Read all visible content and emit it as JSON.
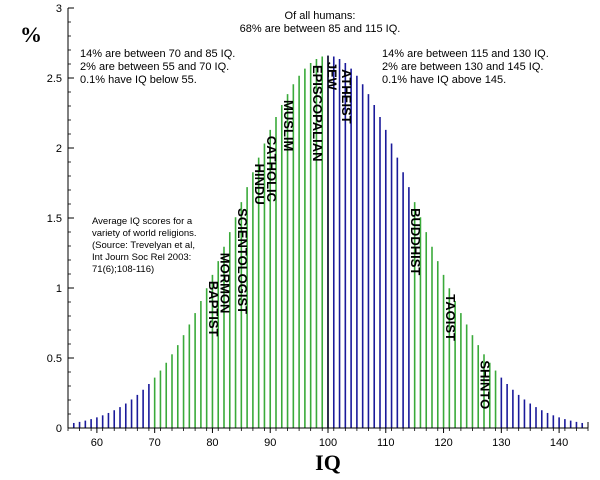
{
  "chart_data": {
    "type": "bar",
    "mean": 100,
    "sd": 15,
    "bar_step": 1,
    "xlim": [
      55,
      145
    ],
    "ylim": [
      0,
      3
    ],
    "x_ticks": [
      60,
      70,
      80,
      90,
      100,
      110,
      120,
      130,
      140
    ],
    "y_ticks": [
      {
        "v": 0,
        "label": "0"
      },
      {
        "v": 0.5,
        "label": "0.5"
      },
      {
        "v": 1,
        "label": "1"
      },
      {
        "v": 1.5,
        "label": "1.5"
      },
      {
        "v": 2,
        "label": "2"
      },
      {
        "v": 2.5,
        "label": "2.5"
      },
      {
        "v": 3,
        "label": "3"
      }
    ],
    "ylabel": "%",
    "xlabel": "IQ",
    "colors": {
      "green": "#3aaa3a",
      "blue": "#1a1a9a",
      "mean_line": "#000000"
    },
    "color_bands": [
      {
        "from": 55,
        "to": 70,
        "color": "blue"
      },
      {
        "from": 70,
        "to": 85,
        "color": "green"
      },
      {
        "from": 85,
        "to": 100,
        "color": "green"
      },
      {
        "from": 100,
        "to": 115,
        "color": "blue"
      },
      {
        "from": 115,
        "to": 130,
        "color": "green"
      },
      {
        "from": 130,
        "to": 145,
        "color": "blue"
      }
    ],
    "annotations": {
      "top_center": [
        "Of all humans:",
        "68% are between 85 and 115 IQ."
      ],
      "top_left": [
        "14% are between 70 and 85 IQ.",
        "2% are between 55 and 70 IQ.",
        "0.1% have IQ below 55."
      ],
      "top_right": [
        "14% are between 115 and 130 IQ.",
        "2% are between 130 and 145 IQ.",
        "0.1% have IQ above 145."
      ],
      "source": [
        "Average IQ scores for a",
        "variety of world religions.",
        "(Source: Trevelyan et al,",
        "Int Journ Soc Rel 2003:",
        "71(6);108-116)"
      ]
    },
    "religions": [
      {
        "label": "BAPTIST",
        "iq": 80
      },
      {
        "label": "MORMON",
        "iq": 82
      },
      {
        "label": "SCIENTOLOGIST",
        "iq": 85
      },
      {
        "label": "HINDU",
        "iq": 88
      },
      {
        "label": "CATHOLIC",
        "iq": 90
      },
      {
        "label": "MUSLIM",
        "iq": 93
      },
      {
        "label": "EPISCOPALIAN",
        "iq": 98
      },
      {
        "label": "JEW",
        "iq": 100.5
      },
      {
        "label": "ATHEIST",
        "iq": 103
      },
      {
        "label": "BUDDHIST",
        "iq": 115
      },
      {
        "label": "TAOIST",
        "iq": 121
      },
      {
        "label": "SHINTO",
        "iq": 127
      }
    ]
  }
}
